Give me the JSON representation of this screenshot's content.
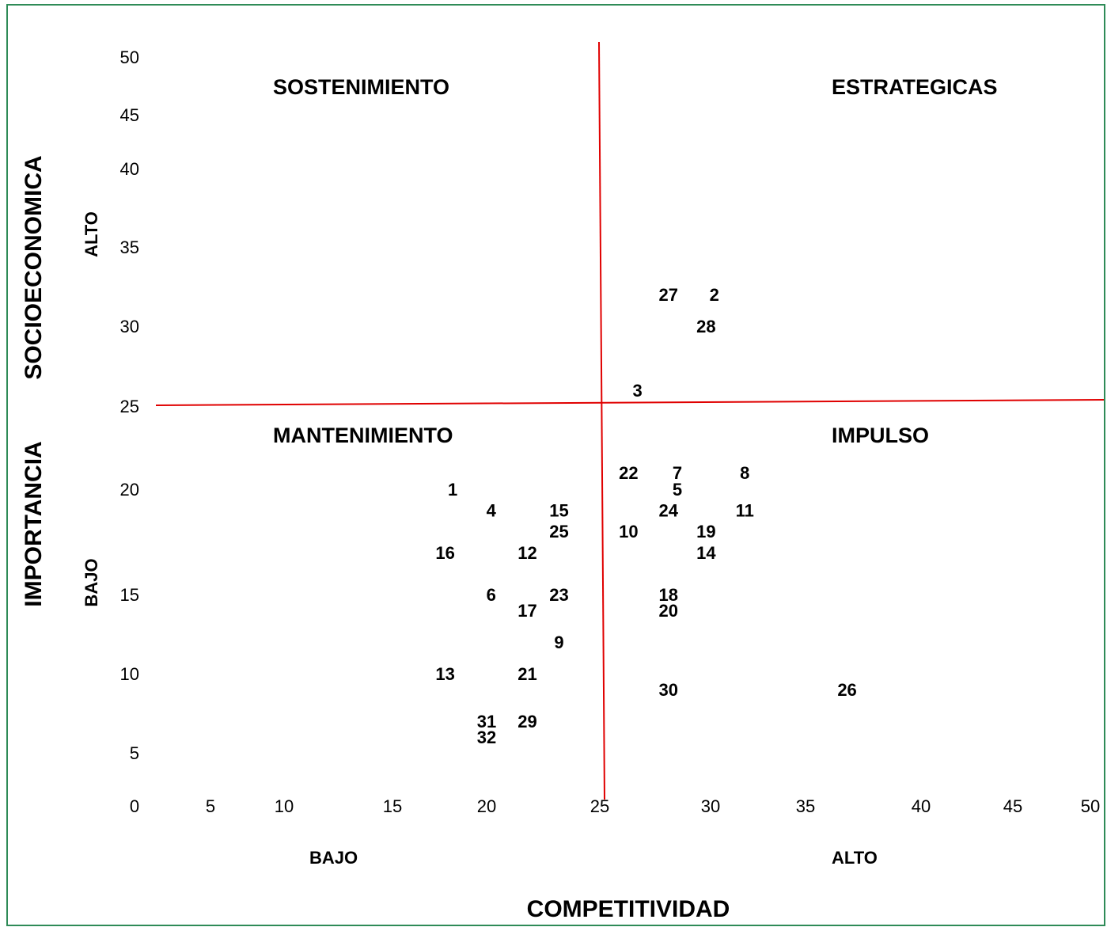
{
  "chart_data": {
    "type": "scatter",
    "xlabel": "COMPETITIVIDAD",
    "ylabel_parts": [
      "IMPORTANCIA",
      "SOCIOECONOMICA"
    ],
    "xlim": [
      0,
      50
    ],
    "ylim": [
      0,
      50
    ],
    "x_ticks": [
      0,
      5,
      10,
      15,
      20,
      25,
      30,
      35,
      40,
      45,
      50
    ],
    "y_ticks": [
      0,
      5,
      10,
      15,
      20,
      25,
      30,
      35,
      40,
      45,
      50
    ],
    "x_levels": {
      "low": "BAJO",
      "high": "ALTO"
    },
    "y_levels": {
      "low": "BAJO",
      "high": "ALTO"
    },
    "divider": {
      "x": 25,
      "y": 25,
      "color": "#e00000"
    },
    "quadrants": {
      "top_left": "SOSTENIMIENTO",
      "top_right": "ESTRATEGICAS",
      "bottom_left": "MANTENIMIENTO",
      "bottom_right": "IMPULSO"
    },
    "points": [
      {
        "label": "1",
        "x": 18.2,
        "y": 20.0
      },
      {
        "label": "2",
        "x": 30.2,
        "y": 32.0
      },
      {
        "label": "3",
        "x": 26.7,
        "y": 26.0
      },
      {
        "label": "4",
        "x": 20.2,
        "y": 19.0
      },
      {
        "label": "5",
        "x": 28.5,
        "y": 20.0
      },
      {
        "label": "6",
        "x": 20.2,
        "y": 15.0
      },
      {
        "label": "7",
        "x": 28.5,
        "y": 21.0
      },
      {
        "label": "8",
        "x": 31.8,
        "y": 21.0
      },
      {
        "label": "9",
        "x": 23.2,
        "y": 12.0
      },
      {
        "label": "10",
        "x": 26.3,
        "y": 18.0
      },
      {
        "label": "11",
        "x": 31.8,
        "y": 19.0
      },
      {
        "label": "12",
        "x": 21.8,
        "y": 17.0
      },
      {
        "label": "13",
        "x": 17.8,
        "y": 10.0
      },
      {
        "label": "14",
        "x": 29.8,
        "y": 17.0
      },
      {
        "label": "15",
        "x": 23.2,
        "y": 19.0
      },
      {
        "label": "16",
        "x": 17.8,
        "y": 17.0
      },
      {
        "label": "17",
        "x": 21.8,
        "y": 14.0
      },
      {
        "label": "18",
        "x": 28.1,
        "y": 15.0
      },
      {
        "label": "19",
        "x": 29.8,
        "y": 18.0
      },
      {
        "label": "20",
        "x": 28.1,
        "y": 14.0
      },
      {
        "label": "21",
        "x": 21.8,
        "y": 10.0
      },
      {
        "label": "22",
        "x": 26.3,
        "y": 21.0
      },
      {
        "label": "23",
        "x": 23.2,
        "y": 15.0
      },
      {
        "label": "24",
        "x": 28.1,
        "y": 19.0
      },
      {
        "label": "25",
        "x": 23.2,
        "y": 18.0
      },
      {
        "label": "26",
        "x": 36.8,
        "y": 9.0
      },
      {
        "label": "27",
        "x": 28.1,
        "y": 32.0
      },
      {
        "label": "28",
        "x": 29.8,
        "y": 30.0
      },
      {
        "label": "29",
        "x": 21.8,
        "y": 7.0
      },
      {
        "label": "30",
        "x": 28.1,
        "y": 9.0
      },
      {
        "label": "31",
        "x": 20.0,
        "y": 7.0
      },
      {
        "label": "32",
        "x": 20.0,
        "y": 6.0
      }
    ]
  }
}
